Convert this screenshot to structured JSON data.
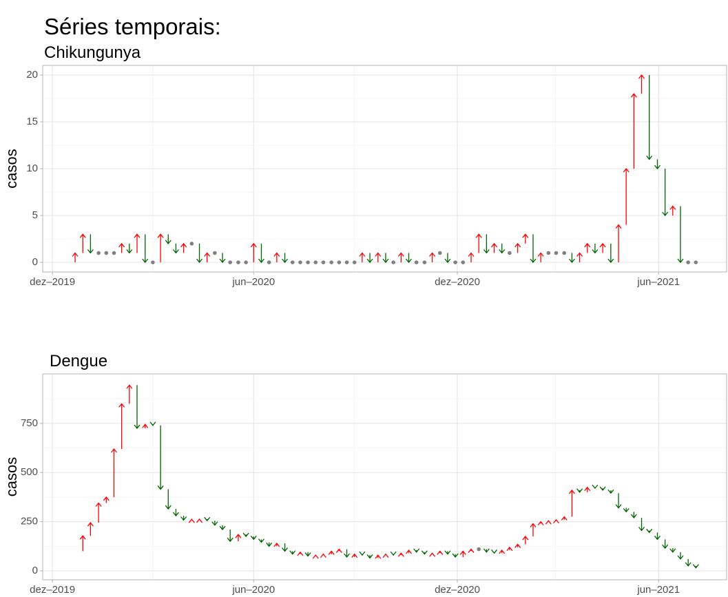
{
  "chart_data": [
    {
      "type": "arrow",
      "title": "Séries temporais:",
      "subtitle": "Chikungunya",
      "ylabel": "casos",
      "x": [
        2019.954,
        2019.973,
        2019.992,
        2020.011,
        2020.031,
        2020.05,
        2020.069,
        2020.088,
        2020.107,
        2020.126,
        2020.146,
        2020.165,
        2020.184,
        2020.203,
        2020.222,
        2020.241,
        2020.261,
        2020.28,
        2020.299,
        2020.318,
        2020.337,
        2020.356,
        2020.376,
        2020.395,
        2020.414,
        2020.433,
        2020.452,
        2020.471,
        2020.491,
        2020.51,
        2020.529,
        2020.548,
        2020.567,
        2020.586,
        2020.606,
        2020.625,
        2020.644,
        2020.663,
        2020.682,
        2020.701,
        2020.721,
        2020.74,
        2020.759,
        2020.778,
        2020.797,
        2020.816,
        2020.836,
        2020.855,
        2020.874,
        2020.893,
        2020.912,
        2020.931,
        2020.951,
        2020.97,
        2020.989,
        2021.008,
        2021.027,
        2021.046,
        2021.066,
        2021.085,
        2021.104,
        2021.123,
        2021.142,
        2021.161,
        2021.181,
        2021.2,
        2021.219,
        2021.238,
        2021.257,
        2021.276,
        2021.296,
        2021.315,
        2021.334,
        2021.353,
        2021.372,
        2021.391,
        2021.411,
        2021.43,
        2021.449,
        2021.468,
        2021.487,
        2021.506
      ],
      "values": [
        0,
        1,
        3,
        1,
        1,
        1,
        1,
        2,
        1,
        3,
        0,
        0,
        3,
        2,
        1,
        2,
        2,
        0,
        1,
        1,
        0,
        0,
        0,
        0,
        2,
        0,
        0,
        1,
        0,
        0,
        0,
        0,
        0,
        0,
        0,
        0,
        0,
        0,
        1,
        0,
        1,
        0,
        0,
        1,
        0,
        0,
        0,
        1,
        1,
        0,
        0,
        0,
        1,
        3,
        1,
        2,
        1,
        1,
        2,
        3,
        0,
        1,
        1,
        1,
        1,
        0,
        1,
        2,
        1,
        2,
        0,
        4,
        10,
        18,
        20,
        11,
        10,
        5,
        6,
        0,
        0,
        0
      ],
      "colors": {
        "up": "#ff0000",
        "down": "#006400",
        "equal": "#808080"
      },
      "xlim": [
        2019.893,
        2021.582
      ],
      "xticks": [
        {
          "value": 2019.917,
          "label": "dez–2019"
        },
        {
          "value": 2020.414,
          "label": "jun–2020"
        },
        {
          "value": 2020.917,
          "label": "dez–2020"
        },
        {
          "value": 2021.414,
          "label": "jun–2021"
        }
      ],
      "ylim": [
        -1.03,
        21.03
      ],
      "yticks": [
        0,
        5,
        10,
        15,
        20
      ],
      "grid": true
    },
    {
      "type": "arrow",
      "subtitle": "Dengue",
      "ylabel": "casos",
      "x": [
        2019.973,
        2019.992,
        2020.011,
        2020.031,
        2020.05,
        2020.069,
        2020.088,
        2020.107,
        2020.126,
        2020.146,
        2020.165,
        2020.184,
        2020.203,
        2020.222,
        2020.241,
        2020.261,
        2020.28,
        2020.299,
        2020.318,
        2020.337,
        2020.356,
        2020.376,
        2020.395,
        2020.414,
        2020.433,
        2020.452,
        2020.471,
        2020.491,
        2020.51,
        2020.529,
        2020.548,
        2020.567,
        2020.586,
        2020.606,
        2020.625,
        2020.644,
        2020.663,
        2020.682,
        2020.701,
        2020.721,
        2020.74,
        2020.759,
        2020.778,
        2020.797,
        2020.816,
        2020.836,
        2020.855,
        2020.874,
        2020.893,
        2020.912,
        2020.931,
        2020.951,
        2020.97,
        2020.989,
        2021.008,
        2021.027,
        2021.046,
        2021.066,
        2021.085,
        2021.104,
        2021.123,
        2021.142,
        2021.161,
        2021.181,
        2021.2,
        2021.219,
        2021.238,
        2021.257,
        2021.276,
        2021.296,
        2021.315,
        2021.334,
        2021.353,
        2021.372,
        2021.391,
        2021.411,
        2021.43,
        2021.449,
        2021.468,
        2021.487,
        2021.506
      ],
      "values": [
        100,
        178,
        245,
        345,
        375,
        620,
        850,
        945,
        725,
        745,
        740,
        415,
        315,
        280,
        258,
        262,
        263,
        255,
        232,
        210,
        150,
        185,
        175,
        160,
        145,
        125,
        140,
        100,
        85,
        95,
        75,
        80,
        85,
        100,
        110,
        70,
        85,
        80,
        65,
        80,
        85,
        80,
        90,
        105,
        95,
        85,
        90,
        100,
        85,
        70,
        100,
        110,
        110,
        95,
        90,
        105,
        120,
        135,
        175,
        240,
        250,
        255,
        260,
        275,
        410,
        400,
        425,
        420,
        410,
        395,
        320,
        300,
        270,
        205,
        195,
        160,
        115,
        95,
        60,
        25,
        15
      ],
      "colors": {
        "up": "#ff0000",
        "down": "#006400",
        "equal": "#808080"
      },
      "xlim": [
        2019.893,
        2021.582
      ],
      "xticks": [
        {
          "value": 2019.917,
          "label": "dez–2019"
        },
        {
          "value": 2020.414,
          "label": "jun–2020"
        },
        {
          "value": 2020.917,
          "label": "dez–2020"
        },
        {
          "value": 2021.414,
          "label": "jun–2021"
        }
      ],
      "ylim": [
        -45.6,
        1002
      ],
      "yticks": [
        0,
        250,
        500,
        750
      ],
      "grid": true
    }
  ]
}
